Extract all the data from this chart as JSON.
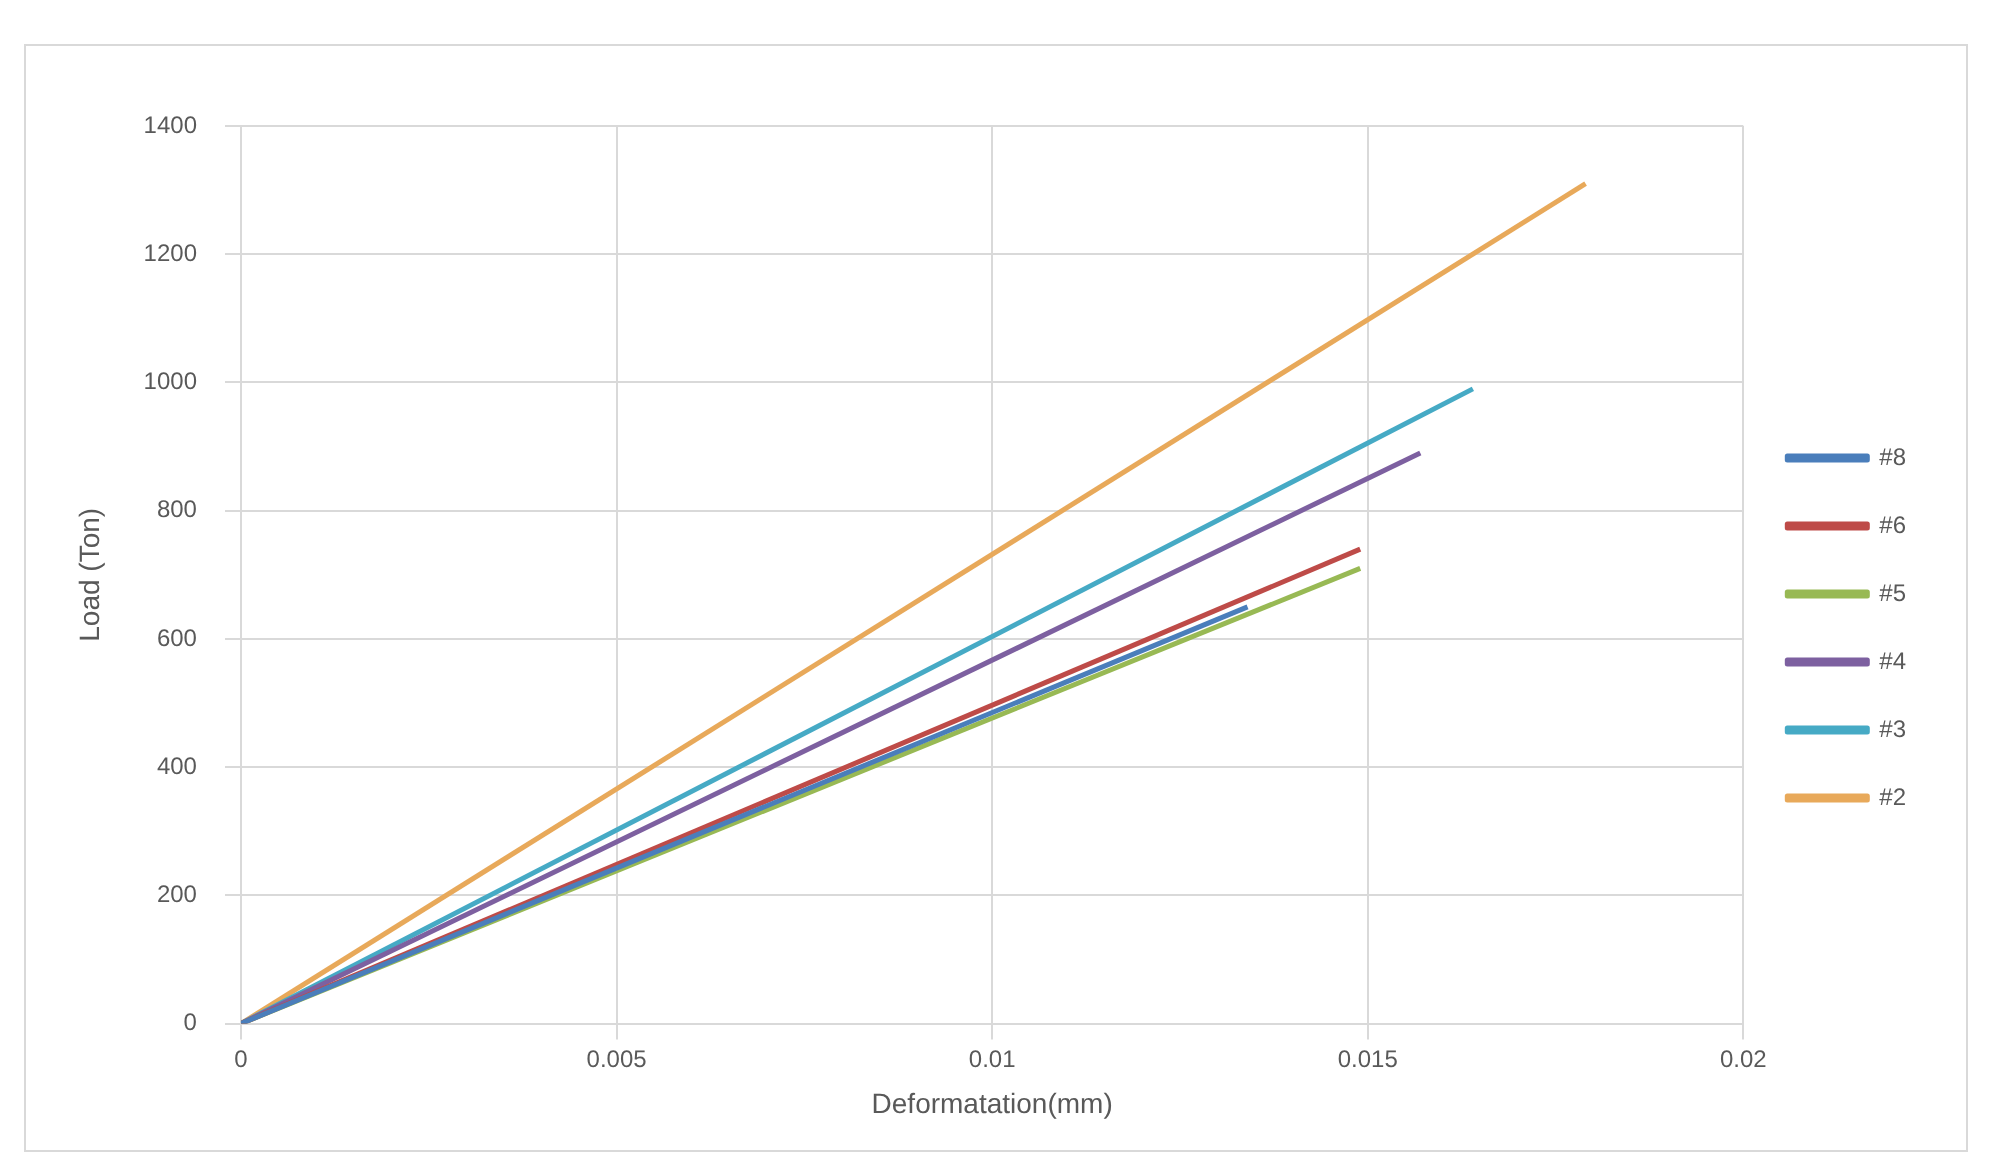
{
  "chart_data": {
    "type": "line",
    "xlabel": "Deformatation(mm)",
    "ylabel": "Load (Ton)",
    "xlim": [
      0,
      0.02
    ],
    "xticks": [
      0,
      0.005,
      0.01,
      0.015,
      0.02
    ],
    "ylim": [
      0,
      1400
    ],
    "yticks": [
      0,
      200,
      400,
      600,
      800,
      1000,
      1200,
      1400
    ],
    "grid": true,
    "legend": "right",
    "marker": "none",
    "line_style": "solid",
    "series": [
      {
        "name": "#8",
        "color": "#4a7ebb",
        "x": [
          0,
          0.0134
        ],
        "values": [
          0,
          650
        ]
      },
      {
        "name": "#6",
        "color": "#be4b48",
        "x": [
          0,
          0.0149
        ],
        "values": [
          0,
          740
        ]
      },
      {
        "name": "#5",
        "color": "#98b954",
        "x": [
          0,
          0.0149
        ],
        "values": [
          0,
          710
        ]
      },
      {
        "name": "#4",
        "color": "#7d60a0",
        "x": [
          0,
          0.0157
        ],
        "values": [
          0,
          890
        ]
      },
      {
        "name": "#3",
        "color": "#46aac5",
        "x": [
          0,
          0.0164
        ],
        "values": [
          0,
          990
        ]
      },
      {
        "name": "#2",
        "color": "#e8a95a",
        "x": [
          0,
          0.0179
        ],
        "values": [
          0,
          1310
        ]
      }
    ]
  }
}
